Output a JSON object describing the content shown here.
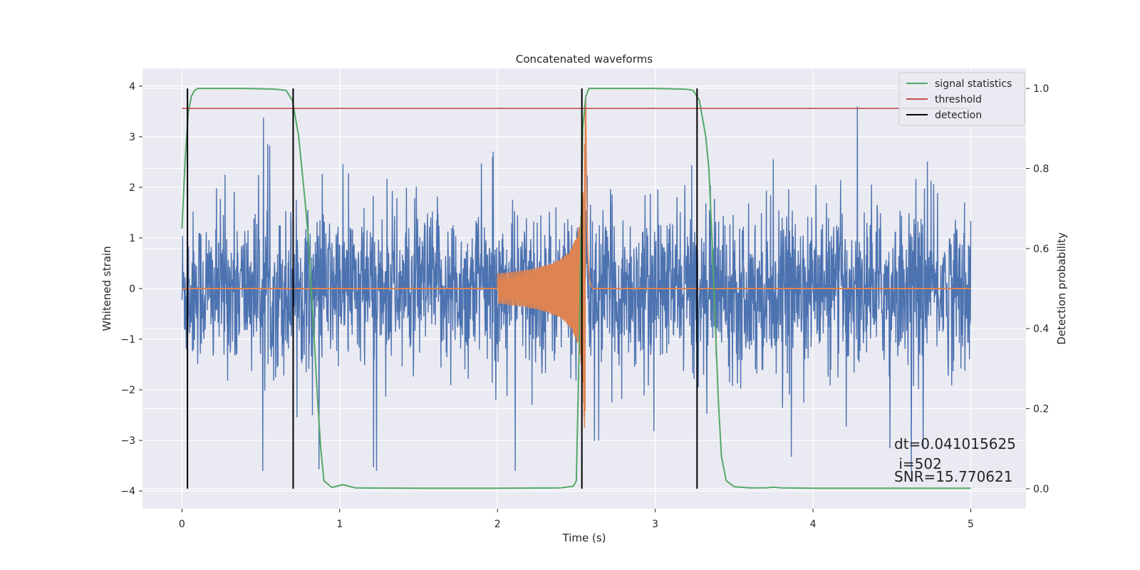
{
  "chart_data": {
    "type": "line",
    "title": "Concatenated waveforms",
    "xlabel": "Time (s)",
    "ylabel": "Whitened strain",
    "y2label": "Detection probability",
    "xlim": [
      -0.25,
      5.35
    ],
    "ylim": [
      -4.35,
      4.35
    ],
    "y2lim": [
      -0.05,
      1.05
    ],
    "xticks": [
      0,
      1,
      2,
      3,
      4,
      5
    ],
    "yticks": [
      -4,
      -3,
      -2,
      -1,
      0,
      1,
      2,
      3,
      4
    ],
    "y2ticks": [
      0.0,
      0.2,
      0.4,
      0.6,
      0.8,
      1.0
    ],
    "xtick_labels": [
      "0",
      "1",
      "2",
      "3",
      "4",
      "5"
    ],
    "ytick_labels": [
      "−4",
      "−3",
      "−2",
      "−1",
      "0",
      "1",
      "2",
      "3",
      "4"
    ],
    "y2tick_labels": [
      "0.0",
      "0.2",
      "0.4",
      "0.6",
      "0.8",
      "1.0"
    ],
    "grid": true,
    "legend_position": "top-right",
    "colors": {
      "strain": "#4c72b0",
      "waveform": "#dd8452",
      "signal_statistics": "#55a868",
      "threshold": "#c44e52",
      "detection": "#000000",
      "background": "#eaeaf2"
    },
    "series": [
      {
        "name": "signal statistics",
        "axis": "right",
        "x": [
          0.0,
          0.02,
          0.04,
          0.06,
          0.08,
          0.1,
          0.2,
          0.4,
          0.6,
          0.66,
          0.7,
          0.74,
          0.76,
          0.78,
          0.8,
          0.82,
          0.84,
          0.86,
          0.88,
          0.9,
          0.95,
          1.0,
          1.02,
          1.06,
          1.1,
          1.5,
          2.0,
          2.4,
          2.48,
          2.5,
          2.52,
          2.54,
          2.56,
          2.58,
          2.6,
          2.8,
          3.0,
          3.2,
          3.24,
          3.28,
          3.32,
          3.34,
          3.36,
          3.38,
          3.4,
          3.42,
          3.45,
          3.5,
          3.6,
          3.7,
          3.75,
          3.8,
          4.0,
          4.5,
          5.0
        ],
        "y": [
          0.65,
          0.82,
          0.94,
          0.98,
          0.995,
          1.0,
          1.0,
          1.0,
          0.998,
          0.995,
          0.97,
          0.88,
          0.8,
          0.72,
          0.63,
          0.5,
          0.36,
          0.22,
          0.1,
          0.02,
          0.003,
          0.008,
          0.01,
          0.006,
          0.002,
          0.001,
          0.001,
          0.002,
          0.006,
          0.02,
          0.4,
          0.9,
          0.98,
          1.0,
          1.0,
          1.0,
          1.0,
          0.998,
          0.995,
          0.97,
          0.88,
          0.8,
          0.62,
          0.42,
          0.22,
          0.08,
          0.02,
          0.005,
          0.002,
          0.002,
          0.004,
          0.002,
          0.001,
          0.001,
          0.001
        ]
      },
      {
        "name": "threshold",
        "axis": "right",
        "x": [
          0,
          5
        ],
        "y": [
          0.95,
          0.95
        ]
      },
      {
        "name": "detection",
        "axis": "right",
        "x": [
          0.035,
          0.705,
          2.535,
          3.265
        ]
      }
    ],
    "waveform_segments": [
      {
        "x": [
          0,
          2.0
        ],
        "y": [
          0,
          0
        ]
      },
      {
        "x": [
          2.6,
          5.0
        ],
        "y": [
          0,
          0
        ]
      }
    ],
    "strain_summary": {
      "x_range": [
        0,
        5
      ],
      "typical_band": [
        -1.4,
        1.4
      ],
      "min": -3.6,
      "max": 3.6
    }
  },
  "annotations": {
    "dt": "dt=0.041015625",
    "i": " i=502",
    "snr": "SNR=15.770621"
  }
}
